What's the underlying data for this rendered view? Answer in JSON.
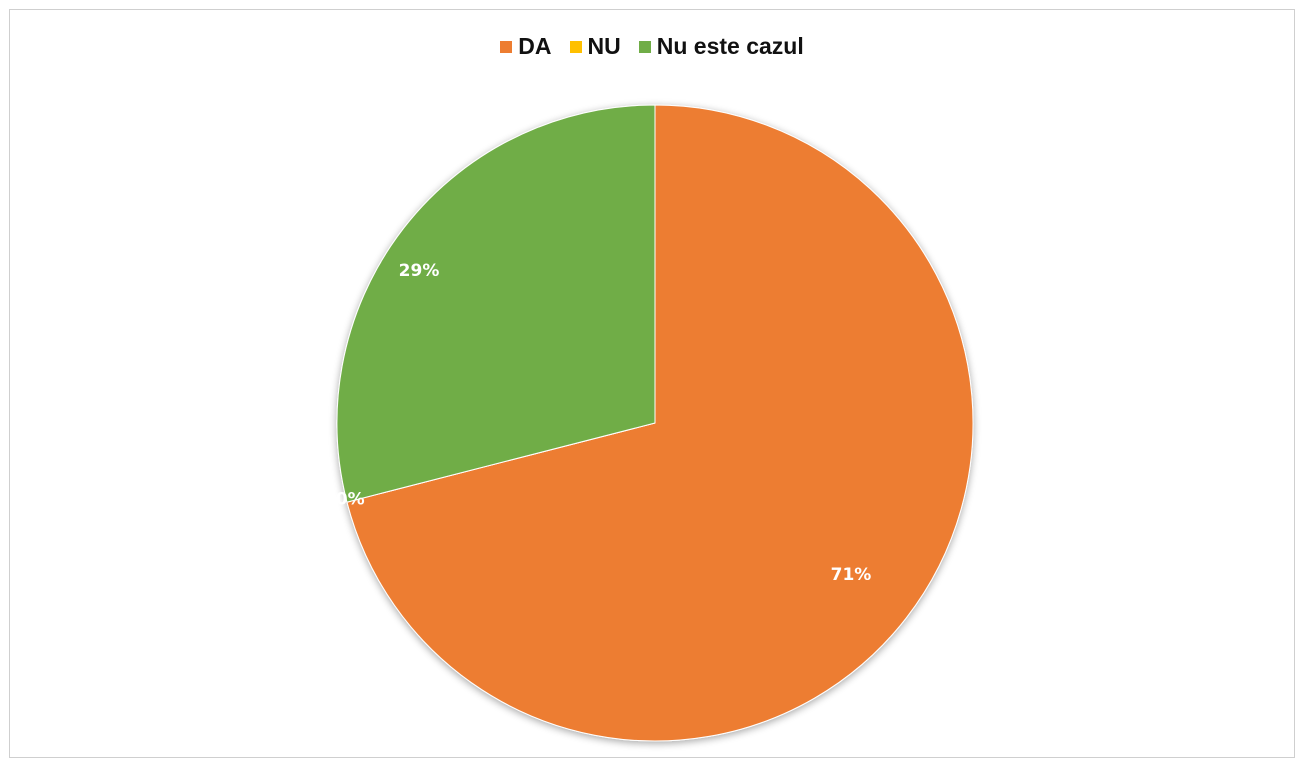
{
  "chart_data": {
    "type": "pie",
    "title": "",
    "categories": [
      "DA",
      "NU",
      "Nu este cazul"
    ],
    "values": [
      71,
      0,
      29
    ],
    "value_labels": [
      "71%",
      "0%",
      "29%"
    ],
    "colors": [
      "#ED7D31",
      "#FFC000",
      "#70AD47"
    ],
    "legend_position": "top"
  }
}
